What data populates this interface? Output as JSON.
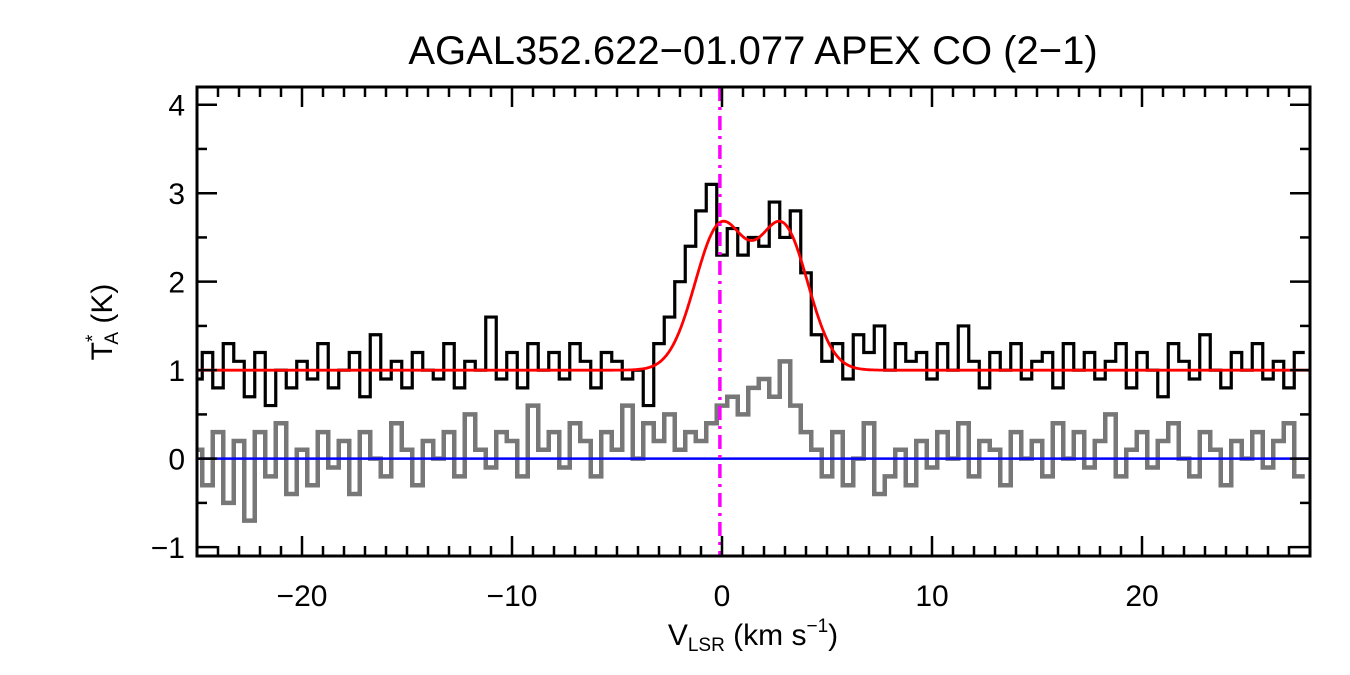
{
  "chart_data": {
    "type": "line",
    "title": "AGAL352.622−01.077  APEX CO (2−1)",
    "xlabel": {
      "main": "V",
      "sub": "LSR",
      "rest": " (km s",
      "sup": "−1",
      "end": ")"
    },
    "ylabel": {
      "main": "T",
      "sup": "*",
      "sub": "A",
      "rest": " (K)"
    },
    "xlim": [
      -25,
      28
    ],
    "ylim": [
      -1.1,
      4.2
    ],
    "x_major_ticks": [
      -20,
      -10,
      0,
      10,
      20
    ],
    "x_tick_labels": [
      "−20",
      "−10",
      "0",
      "10",
      "20"
    ],
    "x_minor_step": 1,
    "y_major_ticks": [
      -1,
      0,
      1,
      2,
      3,
      4
    ],
    "y_tick_labels": [
      "−1",
      "0",
      "1",
      "2",
      "3",
      "4"
    ],
    "y_minor_step": 0.5,
    "grid": false,
    "x_start": -25,
    "x_step": 0.5,
    "series": [
      {
        "color": "#000000",
        "style": "histogram",
        "values": [
          0.9,
          1.2,
          0.8,
          1.3,
          1.1,
          0.7,
          1.2,
          0.6,
          1.0,
          0.8,
          1.1,
          0.9,
          1.3,
          0.8,
          1.0,
          1.2,
          0.7,
          1.4,
          0.9,
          1.1,
          0.8,
          1.2,
          1.0,
          0.9,
          1.3,
          0.8,
          1.1,
          1.0,
          1.6,
          0.9,
          1.2,
          0.8,
          1.3,
          1.0,
          1.2,
          0.9,
          1.3,
          1.1,
          0.8,
          1.2,
          1.1,
          0.9,
          1.0,
          0.6,
          1.3,
          1.6,
          2.0,
          2.4,
          2.8,
          3.1,
          2.3,
          2.6,
          2.3,
          2.5,
          2.4,
          2.9,
          2.5,
          2.8,
          2.1,
          1.4,
          1.1,
          1.3,
          0.9,
          1.4,
          1.2,
          1.5,
          1.0,
          1.3,
          1.1,
          1.2,
          0.9,
          1.3,
          1.0,
          1.5,
          1.1,
          0.8,
          1.2,
          1.0,
          1.3,
          0.9,
          1.1,
          1.2,
          0.8,
          1.3,
          1.0,
          1.2,
          0.9,
          1.1,
          1.3,
          0.8,
          1.2,
          1.0,
          0.7,
          1.3,
          1.1,
          0.9,
          1.4,
          1.0,
          0.8,
          1.2,
          1.0,
          1.3,
          0.9,
          1.1,
          0.8,
          1.2
        ]
      },
      {
        "color": "#777777",
        "style": "histogram",
        "values": [
          0.1,
          -0.3,
          0.3,
          -0.5,
          0.2,
          -0.7,
          0.3,
          -0.2,
          0.4,
          -0.4,
          0.1,
          -0.3,
          0.3,
          -0.1,
          0.2,
          -0.4,
          0.3,
          0.0,
          -0.2,
          0.4,
          0.1,
          -0.3,
          0.2,
          0.0,
          0.3,
          -0.2,
          0.5,
          0.1,
          -0.1,
          0.3,
          0.2,
          -0.2,
          0.6,
          0.1,
          0.3,
          -0.1,
          0.4,
          0.2,
          -0.2,
          0.3,
          0.1,
          0.6,
          0.0,
          0.4,
          0.2,
          0.5,
          0.1,
          0.3,
          0.2,
          0.4,
          0.6,
          0.7,
          0.5,
          0.8,
          0.9,
          0.7,
          1.1,
          0.6,
          0.3,
          0.1,
          -0.2,
          0.3,
          -0.3,
          0.0,
          0.4,
          -0.4,
          -0.2,
          0.1,
          -0.3,
          0.2,
          -0.1,
          0.3,
          0.0,
          0.4,
          -0.2,
          0.2,
          0.1,
          -0.3,
          0.3,
          0.0,
          0.2,
          -0.2,
          0.4,
          0.0,
          0.3,
          -0.1,
          0.2,
          0.5,
          -0.2,
          0.1,
          0.3,
          -0.1,
          0.2,
          0.4,
          0.0,
          -0.2,
          0.3,
          0.1,
          -0.3,
          0.2,
          0.0,
          0.3,
          -0.1,
          0.2,
          0.4,
          -0.2
        ]
      }
    ],
    "fit": {
      "color": "#ff0000",
      "baseline": 1.0,
      "components": [
        {
          "amplitude": 1.6,
          "center": -0.1,
          "sigma": 1.2
        },
        {
          "amplitude": 1.6,
          "center": 2.9,
          "sigma": 1.2
        }
      ]
    },
    "zero_line": {
      "y": 0,
      "color": "#0000ff"
    },
    "velocity_marker": {
      "x": -0.1,
      "color": "#ff00ff",
      "style": "dash-dot"
    }
  }
}
